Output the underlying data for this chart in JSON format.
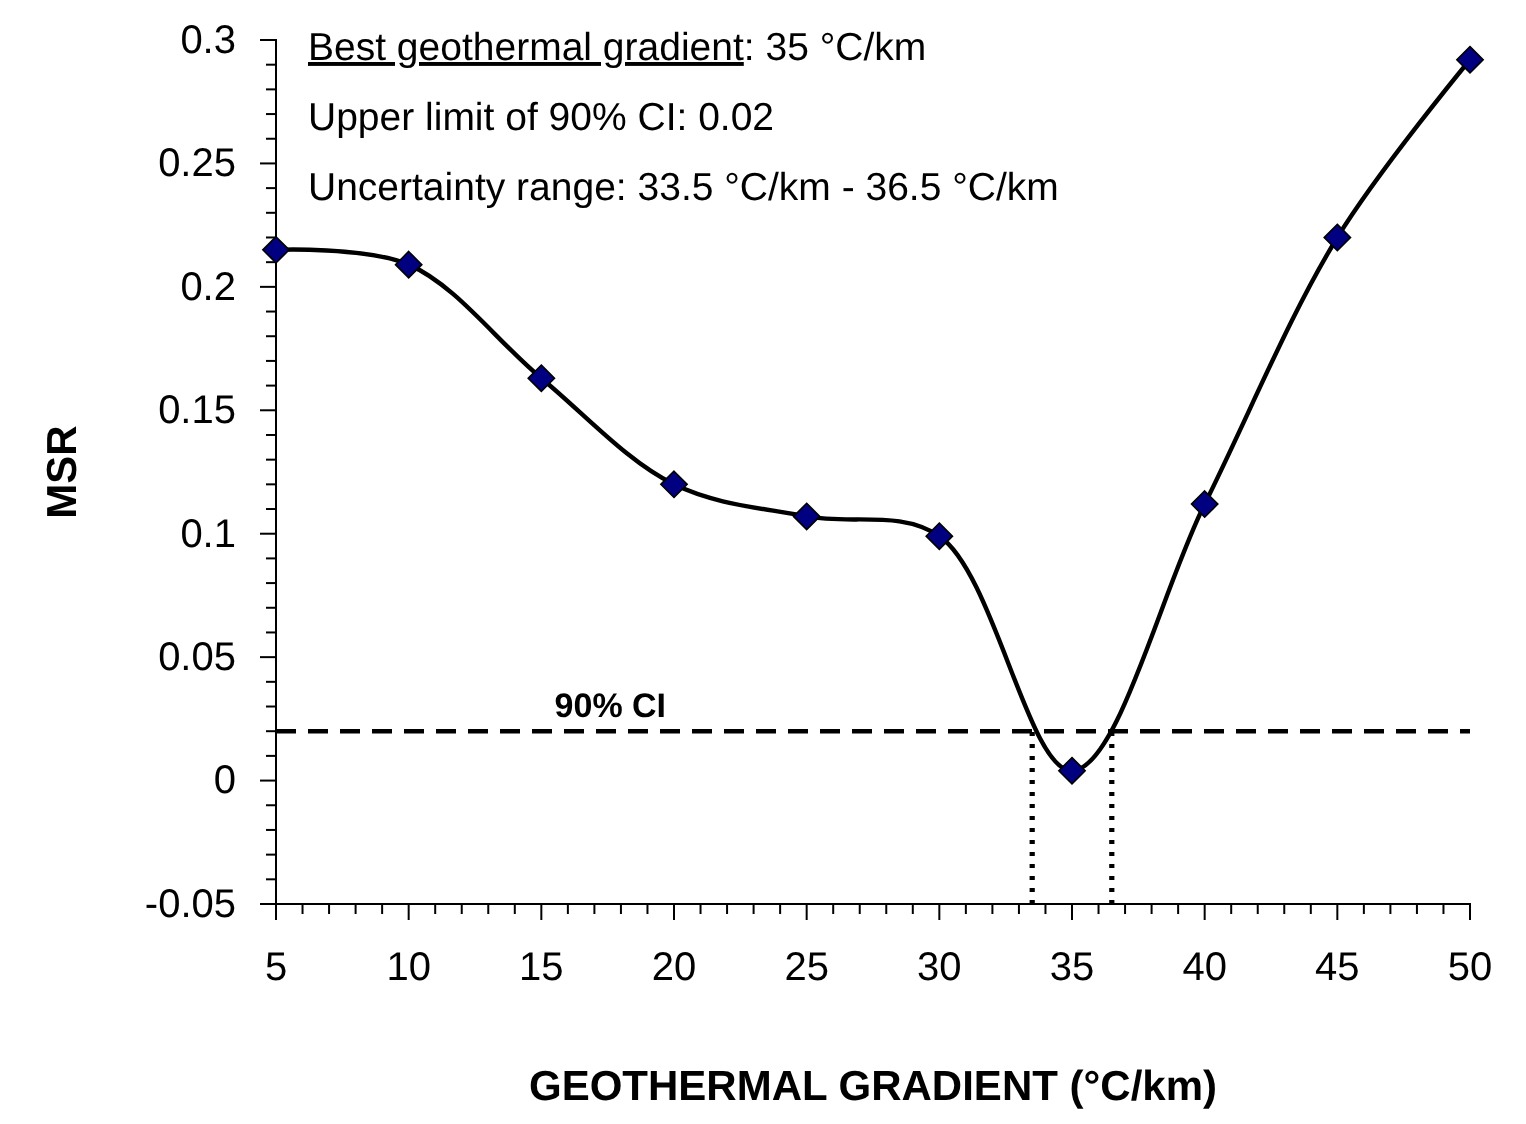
{
  "chart_data": {
    "type": "line",
    "xlabel": "GEOTHERMAL GRADIENT (°C/km)",
    "ylabel": "MSR",
    "x": [
      5,
      10,
      15,
      20,
      25,
      30,
      35,
      40,
      45,
      50
    ],
    "series": [
      {
        "color": "#000080",
        "values": [
          0.215,
          0.209,
          0.163,
          0.12,
          0.107,
          0.099,
          0.004,
          0.112,
          0.22,
          0.292
        ]
      }
    ],
    "marker": "diamond",
    "line_style": "solid",
    "xlim": [
      5,
      50
    ],
    "ylim": [
      -0.05,
      0.3
    ],
    "xticks": [
      5,
      {
        "value": 6,
        "label": null
      },
      {
        "value": 7,
        "label": null
      },
      {
        "value": 8,
        "label": null
      },
      {
        "value": 9,
        "label": null
      },
      10,
      {
        "value": 11,
        "label": null
      },
      {
        "value": 12,
        "label": null
      },
      {
        "value": 13,
        "label": null
      },
      {
        "value": 14,
        "label": null
      },
      15,
      {
        "value": 16,
        "label": null
      },
      {
        "value": 17,
        "label": null
      },
      {
        "value": 18,
        "label": null
      },
      {
        "value": 19,
        "label": null
      },
      20,
      {
        "value": 21,
        "label": null
      },
      {
        "value": 22,
        "label": null
      },
      {
        "value": 23,
        "label": null
      },
      {
        "value": 24,
        "label": null
      },
      25,
      {
        "value": 26,
        "label": null
      },
      {
        "value": 27,
        "label": null
      },
      {
        "value": 28,
        "label": null
      },
      {
        "value": 29,
        "label": null
      },
      30,
      {
        "value": 31,
        "label": null
      },
      {
        "value": 32,
        "label": null
      },
      {
        "value": 33,
        "label": null
      },
      {
        "value": 34,
        "label": null
      },
      35,
      {
        "value": 36,
        "label": null
      },
      {
        "value": 37,
        "label": null
      },
      {
        "value": 38,
        "label": null
      },
      {
        "value": 39,
        "label": null
      },
      40,
      {
        "value": 41,
        "label": null
      },
      {
        "value": 42,
        "label": null
      },
      {
        "value": 43,
        "label": null
      },
      {
        "value": 44,
        "label": null
      },
      45,
      {
        "value": 46,
        "label": null
      },
      {
        "value": 47,
        "label": null
      },
      {
        "value": 48,
        "label": null
      },
      {
        "value": 49,
        "label": null
      },
      50
    ],
    "yticks": [
      -0.05,
      {
        "value": -0.04,
        "label": null
      },
      {
        "value": -0.03,
        "label": null
      },
      {
        "value": -0.02,
        "label": null
      },
      {
        "value": -0.01,
        "label": null
      },
      0,
      {
        "value": 0.01,
        "label": null
      },
      {
        "value": 0.02,
        "label": null
      },
      {
        "value": 0.03,
        "label": null
      },
      {
        "value": 0.04,
        "label": null
      },
      0.05,
      {
        "value": 0.06,
        "label": null
      },
      {
        "value": 0.07,
        "label": null
      },
      {
        "value": 0.08,
        "label": null
      },
      {
        "value": 0.09,
        "label": null
      },
      0.1,
      {
        "value": 0.11,
        "label": null
      },
      {
        "value": 0.12,
        "label": null
      },
      {
        "value": 0.13,
        "label": null
      },
      {
        "value": 0.14,
        "label": null
      },
      0.15,
      {
        "value": 0.16,
        "label": null
      },
      {
        "value": 0.17,
        "label": null
      },
      {
        "value": 0.18,
        "label": null
      },
      {
        "value": 0.19,
        "label": null
      },
      0.2,
      {
        "value": 0.21,
        "label": null
      },
      {
        "value": 0.22,
        "label": null
      },
      {
        "value": 0.23,
        "label": null
      },
      {
        "value": 0.24,
        "label": null
      },
      0.25,
      {
        "value": 0.26,
        "label": null
      },
      {
        "value": 0.27,
        "label": null
      },
      {
        "value": 0.28,
        "label": null
      },
      {
        "value": 0.29,
        "label": null
      },
      0.3
    ],
    "ref_lines": [
      {
        "axis": "y",
        "value": 0.02,
        "label": "90% CI",
        "line_style": "dashed",
        "color": "#000000"
      },
      {
        "axis": "x",
        "value": 33.5,
        "line_style": "dotted",
        "color": "#000000"
      },
      {
        "axis": "x",
        "value": 36.5,
        "line_style": "dotted",
        "color": "#000000"
      }
    ],
    "annotations": [
      "Best geothermal gradient: 35 °C/km",
      "Upper limit of 90% CI: 0.02",
      "Uncertainty range: 33.5 °C/km - 36.5 °C/km"
    ],
    "grid": false
  }
}
